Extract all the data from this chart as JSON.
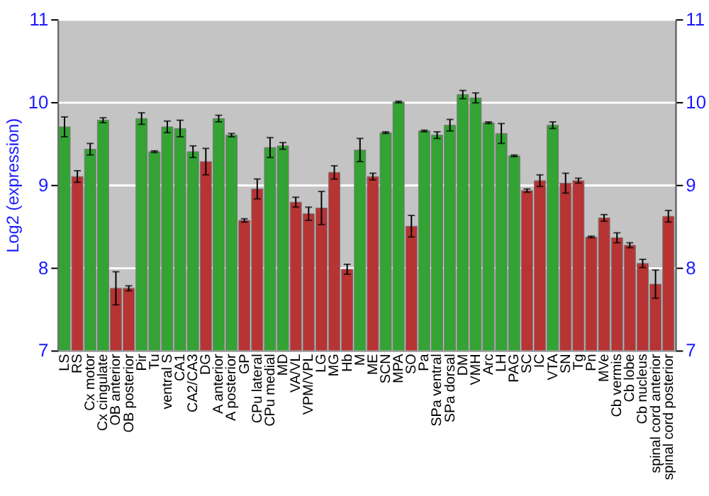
{
  "chart_data": {
    "type": "bar",
    "ylabel": "Log2 (expression)",
    "categories": [
      "LS",
      "RS",
      "Cx motor",
      "Cx cingulate",
      "OB anterior",
      "OB posterior",
      "Pir",
      "Tu",
      "ventral S",
      "CA1",
      "CA2/CA3",
      "DG",
      "A anterior",
      "A posterior",
      "GP",
      "CPu lateral",
      "CPu medial",
      "MD",
      "VA/VL",
      "VPM/VPL",
      "LG",
      "MG",
      "Hb",
      "M",
      "ME",
      "SCN",
      "MPA",
      "SO",
      "Pa",
      "SPa ventral",
      "SPa dorsal",
      "DM",
      "VMH",
      "Arc",
      "LH",
      "PAG",
      "SC",
      "IC",
      "VTA",
      "SN",
      "Tg",
      "Pn",
      "MVe",
      "Cb vermis",
      "Cb lobe",
      "Cb nucleus",
      "spinal cord anterior",
      "spinal cord posterior"
    ],
    "values": [
      9.7,
      9.1,
      9.43,
      9.78,
      7.75,
      7.75,
      9.8,
      9.4,
      9.7,
      9.68,
      9.4,
      9.28,
      9.8,
      9.6,
      8.57,
      8.95,
      9.45,
      9.47,
      8.79,
      8.65,
      8.72,
      9.15,
      7.98,
      9.42,
      9.1,
      9.63,
      10.0,
      8.5,
      9.65,
      9.6,
      9.72,
      10.09,
      10.05,
      9.75,
      9.62,
      9.35,
      8.93,
      9.05,
      9.72,
      9.02,
      9.05,
      8.37,
      8.6,
      8.36,
      8.27,
      8.05,
      7.8,
      8.62
    ],
    "errors": [
      0.12,
      0.07,
      0.07,
      0.03,
      0.2,
      0.03,
      0.07,
      0.01,
      0.07,
      0.1,
      0.07,
      0.16,
      0.04,
      0.02,
      0.02,
      0.12,
      0.12,
      0.04,
      0.06,
      0.08,
      0.2,
      0.08,
      0.06,
      0.14,
      0.04,
      0.01,
      0.01,
      0.13,
      0.01,
      0.04,
      0.07,
      0.05,
      0.06,
      0.01,
      0.12,
      0.01,
      0.02,
      0.07,
      0.04,
      0.12,
      0.03,
      0.01,
      0.04,
      0.06,
      0.03,
      0.05,
      0.17,
      0.07
    ],
    "colors": [
      "#33a333",
      "#b83333",
      "#33a333",
      "#33a333",
      "#b83333",
      "#b83333",
      "#33a333",
      "#33a333",
      "#33a333",
      "#33a333",
      "#33a333",
      "#b83333",
      "#33a333",
      "#33a333",
      "#b83333",
      "#b83333",
      "#33a333",
      "#33a333",
      "#b83333",
      "#b83333",
      "#b83333",
      "#b83333",
      "#b83333",
      "#33a333",
      "#b83333",
      "#33a333",
      "#33a333",
      "#b83333",
      "#33a333",
      "#33a333",
      "#33a333",
      "#33a333",
      "#33a333",
      "#33a333",
      "#33a333",
      "#33a333",
      "#b83333",
      "#b83333",
      "#33a333",
      "#b83333",
      "#b83333",
      "#b83333",
      "#b83333",
      "#b83333",
      "#b83333",
      "#b83333",
      "#b83333",
      "#b83333"
    ],
    "ylim": [
      7,
      11
    ],
    "yticks": [
      7,
      8,
      9,
      10,
      11
    ],
    "y2lim": [
      7,
      11
    ],
    "y2ticks": [
      7,
      8,
      9,
      10,
      11
    ],
    "grid": "y"
  }
}
